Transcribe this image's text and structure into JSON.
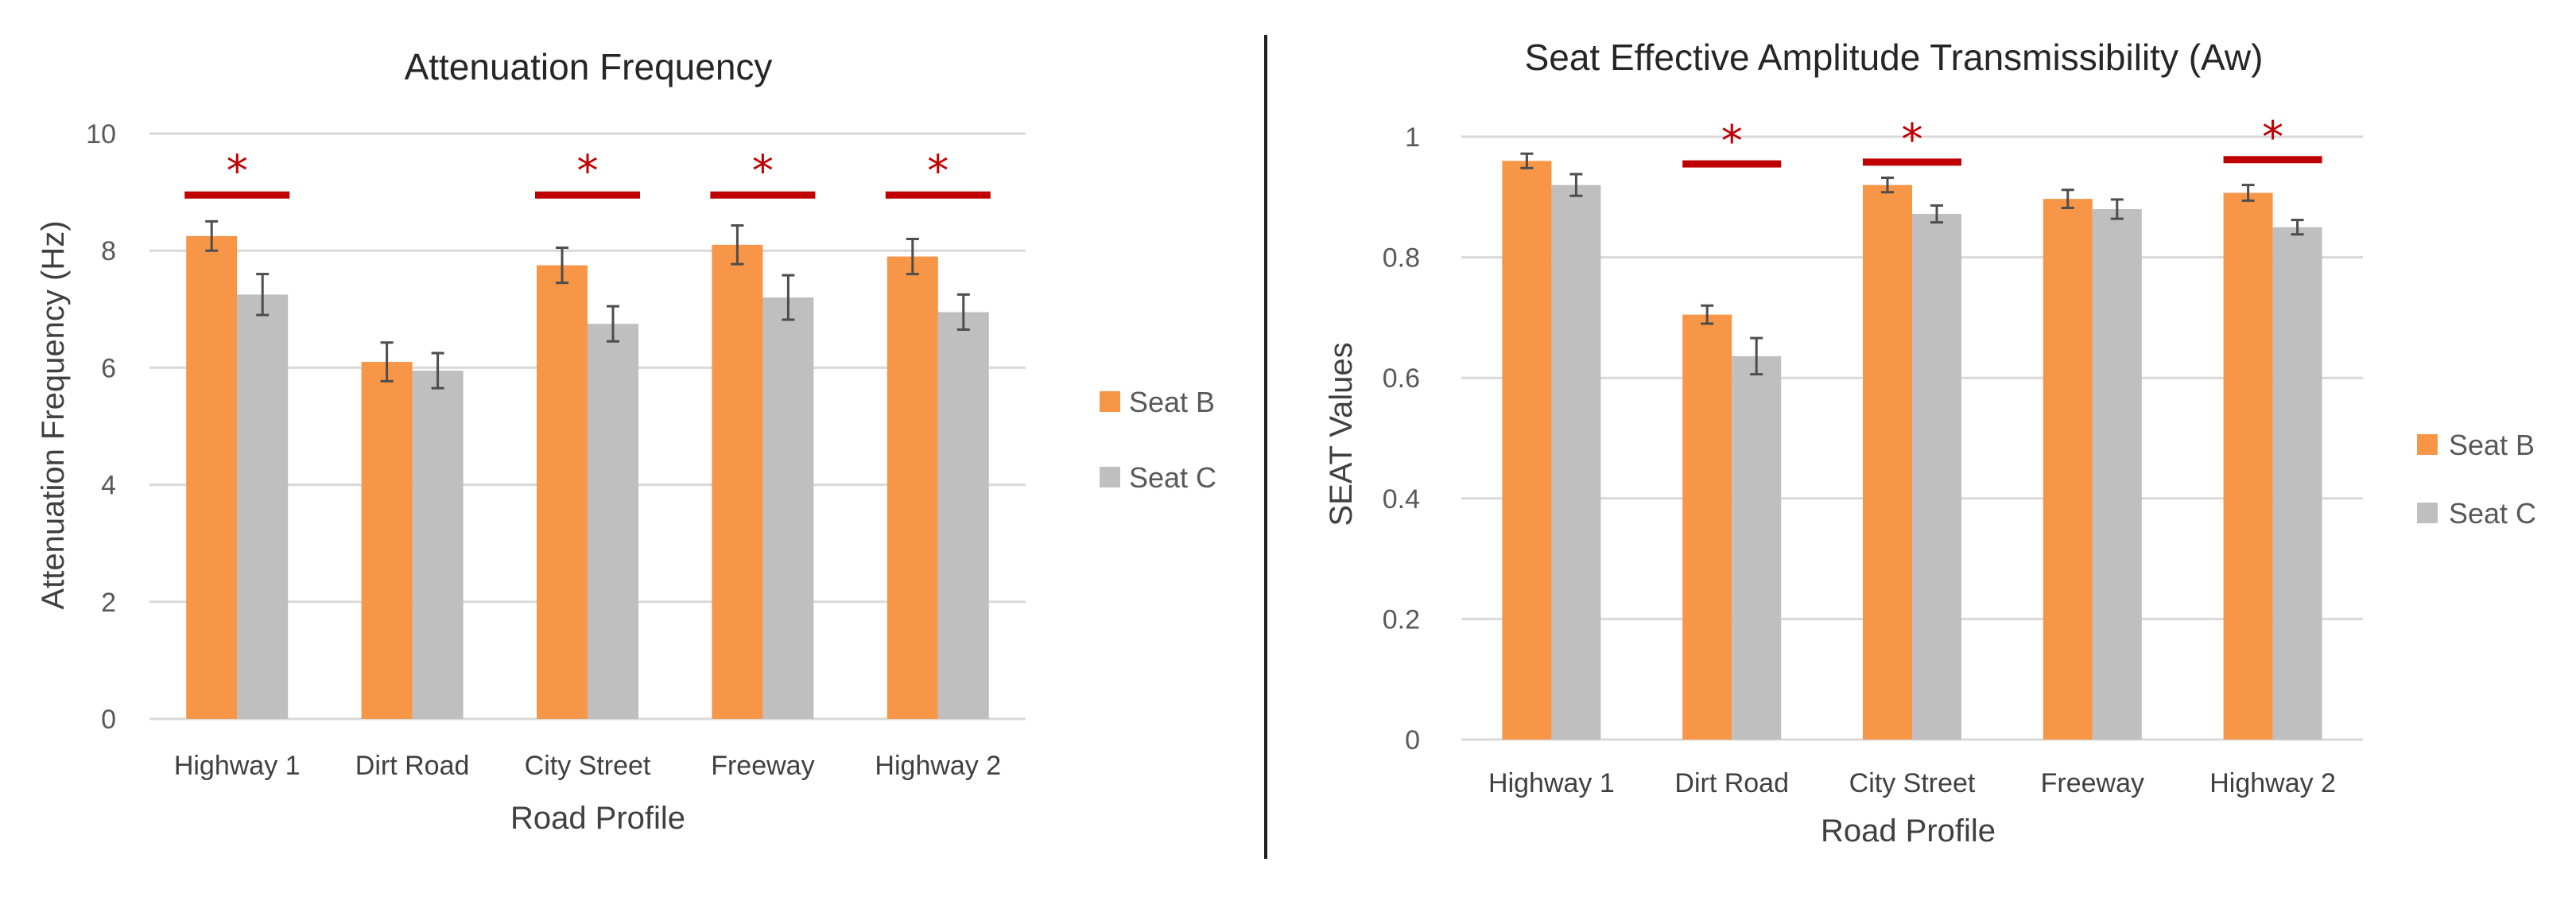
{
  "chart_data": [
    {
      "type": "bar",
      "title": "Attenuation Frequency",
      "xlabel": "Road Profile",
      "ylabel": "Attenuation Frequency (Hz)",
      "categories": [
        "Highway 1",
        "Dirt Road",
        "City Street",
        "Freeway",
        "Highway 2"
      ],
      "ylim": [
        0,
        10
      ],
      "yticks": [
        0,
        2,
        4,
        6,
        8,
        10
      ],
      "ytick_labels": [
        "0",
        "2",
        "4",
        "6",
        "8",
        "10"
      ],
      "grid": true,
      "legend_position": "right",
      "series": [
        {
          "name": "Seat B",
          "color": "#f79646",
          "values": [
            8.25,
            6.1,
            7.75,
            8.1,
            7.9
          ],
          "errors": [
            0.25,
            0.33,
            0.3,
            0.33,
            0.3
          ]
        },
        {
          "name": "Seat C",
          "color": "#bfbfbf",
          "values": [
            7.25,
            5.95,
            6.75,
            7.2,
            6.95
          ],
          "errors": [
            0.35,
            0.3,
            0.3,
            0.38,
            0.3
          ]
        }
      ],
      "significance": [
        {
          "category": "Highway 1",
          "value": 8.95,
          "marker": "*"
        },
        {
          "category": "City Street",
          "value": 8.95,
          "marker": "*"
        },
        {
          "category": "Freeway",
          "value": 8.95,
          "marker": "*"
        },
        {
          "category": "Highway 2",
          "value": 8.95,
          "marker": "*"
        }
      ]
    },
    {
      "type": "bar",
      "title": "Seat Effective Amplitude Transmissibility (Aw)",
      "xlabel": "Road Profile",
      "ylabel": "SEAT Values",
      "categories": [
        "Highway 1",
        "Dirt Road",
        "City Street",
        "Freeway",
        "Highway 2"
      ],
      "ylim": [
        0,
        1
      ],
      "yticks": [
        0,
        0.2,
        0.4,
        0.6,
        0.8,
        1
      ],
      "ytick_labels": [
        "0",
        "0.2",
        "0.4",
        "0.6",
        "0.8",
        "1"
      ],
      "grid": true,
      "legend_position": "right",
      "series": [
        {
          "name": "Seat B",
          "color": "#f79646",
          "values": [
            0.96,
            0.705,
            0.92,
            0.897,
            0.907
          ],
          "errors": [
            0.012,
            0.015,
            0.012,
            0.015,
            0.013
          ]
        },
        {
          "name": "Seat C",
          "color": "#bfbfbf",
          "values": [
            0.92,
            0.636,
            0.872,
            0.88,
            0.85
          ],
          "errors": [
            0.018,
            0.03,
            0.014,
            0.016,
            0.012
          ]
        }
      ],
      "significance": [
        {
          "category": "Dirt Road",
          "value": 0.955,
          "marker": "*"
        },
        {
          "category": "City Street",
          "value": 0.958,
          "marker": "*"
        },
        {
          "category": "Highway 2",
          "value": 0.962,
          "marker": "*"
        }
      ]
    }
  ]
}
